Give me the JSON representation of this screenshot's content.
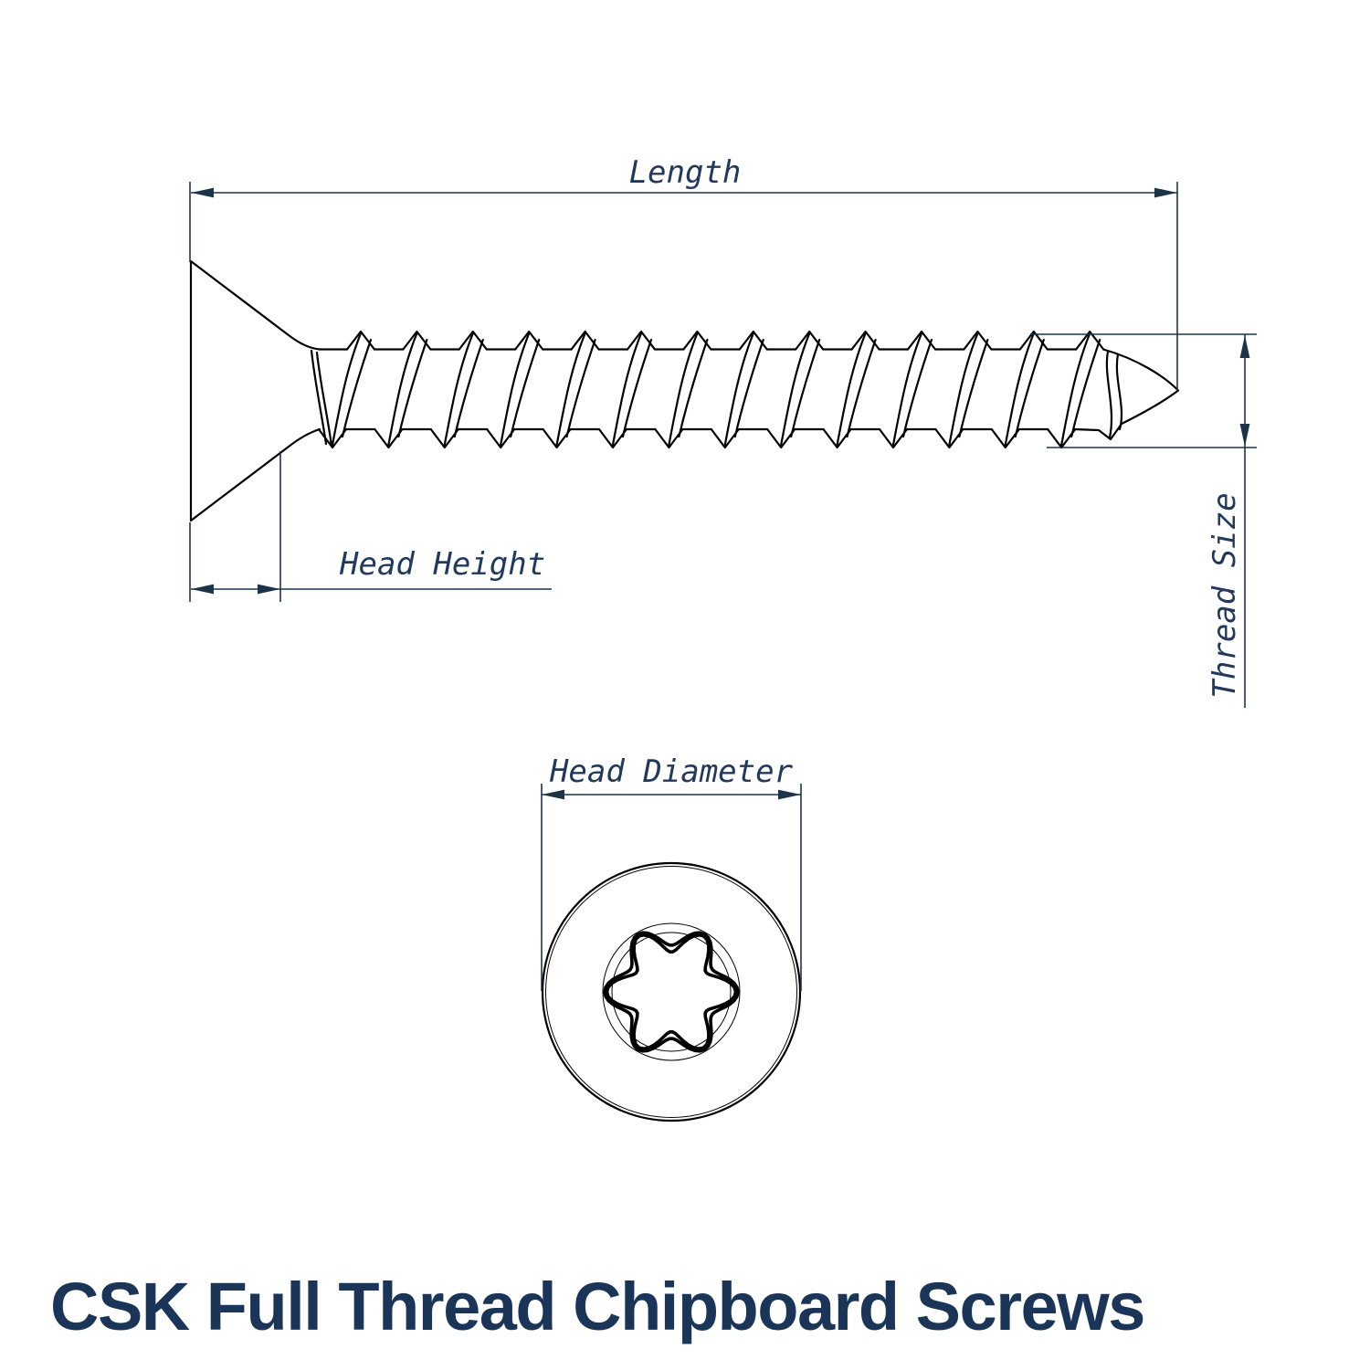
{
  "title": "CSK Full Thread Chipboard Screws",
  "diagram": {
    "length_label": "Length",
    "head_height_label": "Head Height",
    "thread_size_label": "Thread Size",
    "head_diameter_label": "Head Diameter"
  },
  "colors": {
    "line": "#000000",
    "dimension": "#1d3349",
    "label": "#20395c",
    "title": "#1a3557",
    "background": "#ffffff"
  }
}
